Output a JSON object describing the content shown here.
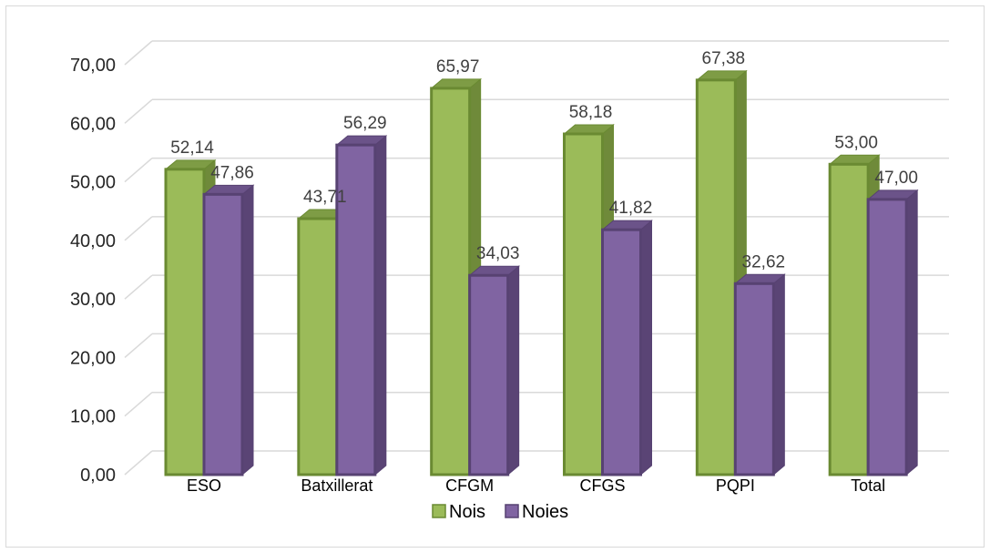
{
  "chart_data": {
    "type": "bar",
    "categories": [
      "ESO",
      "Batxillerat",
      "CFGM",
      "CFGS",
      "PQPI",
      "Total"
    ],
    "series": [
      {
        "name": "Nois",
        "values": [
          52.14,
          43.71,
          65.97,
          58.18,
          67.38,
          53.0
        ],
        "labels": [
          "52,14",
          "43,71",
          "65,97",
          "58,18",
          "67,38",
          "53,00"
        ]
      },
      {
        "name": "Noies",
        "values": [
          47.86,
          56.29,
          34.03,
          41.82,
          32.62,
          47.0
        ],
        "labels": [
          "47,86",
          "56,29",
          "34,03",
          "41,82",
          "32,62",
          "47,00"
        ]
      }
    ],
    "ylim": [
      0,
      70
    ],
    "yticks": [
      0,
      10,
      20,
      30,
      40,
      50,
      60,
      70
    ],
    "ytick_labels": [
      "0,00",
      "10,00",
      "20,00",
      "30,00",
      "40,00",
      "50,00",
      "60,00",
      "70,00"
    ],
    "grid": true,
    "legend_position": "bottom",
    "three_d": true,
    "colors": {
      "Nois": {
        "face": "#9bbb59",
        "side": "#6f8a3a",
        "top": "#7e9c45",
        "edge": "#6a8a32"
      },
      "Noies": {
        "face": "#8064a2",
        "side": "#5a4475",
        "top": "#6b5389",
        "edge": "#574272"
      },
      "grid": "#d9d9d9"
    }
  }
}
